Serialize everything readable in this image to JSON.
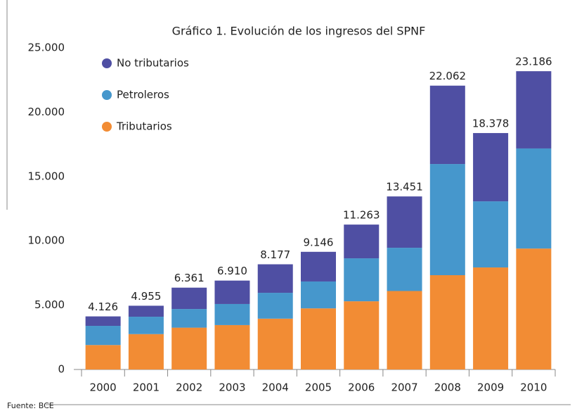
{
  "chart_data": {
    "type": "stacked_bar",
    "title": "Gráfico 1. Evolución de los ingresos del SPNF",
    "source": "Fuente: BCE",
    "categories": [
      "2000",
      "2001",
      "2002",
      "2003",
      "2004",
      "2005",
      "2006",
      "2007",
      "2008",
      "2009",
      "2010"
    ],
    "series": [
      {
        "name": "Tributarios",
        "color": "#f28c34",
        "values": [
          1900,
          2750,
          3250,
          3450,
          3950,
          4750,
          5300,
          6100,
          7330,
          7930,
          9400
        ]
      },
      {
        "name": "Petroleros",
        "color": "#4697cc",
        "values": [
          1490,
          1350,
          1450,
          1640,
          2010,
          2090,
          3340,
          3360,
          8640,
          5140,
          7780
        ]
      },
      {
        "name": "No tributarios",
        "color": "#4f4fa3",
        "values": [
          736,
          855,
          1661,
          1820,
          2217,
          2306,
          2623,
          3991,
          6092,
          5308,
          6006
        ]
      }
    ],
    "totals": {
      "values": [
        4126,
        4955,
        6361,
        6910,
        8177,
        9146,
        11263,
        13451,
        22062,
        18378,
        23186
      ],
      "value_labels": [
        "4.126",
        "4.955",
        "6.361",
        "6.910",
        "8.177",
        "9.146",
        "11.263",
        "13.451",
        "22.062",
        "18.378",
        "23.186"
      ]
    },
    "ylim": [
      0,
      25000
    ],
    "yticks": [
      0,
      {
        "value": 5000,
        "label": "5.000"
      },
      {
        "value": 10000,
        "label": "10.000"
      },
      {
        "value": 15000,
        "label": "15.000"
      },
      {
        "value": 20000,
        "label": "20.000"
      },
      {
        "value": 25000,
        "label": "25.000"
      }
    ],
    "legend": "top-left"
  }
}
